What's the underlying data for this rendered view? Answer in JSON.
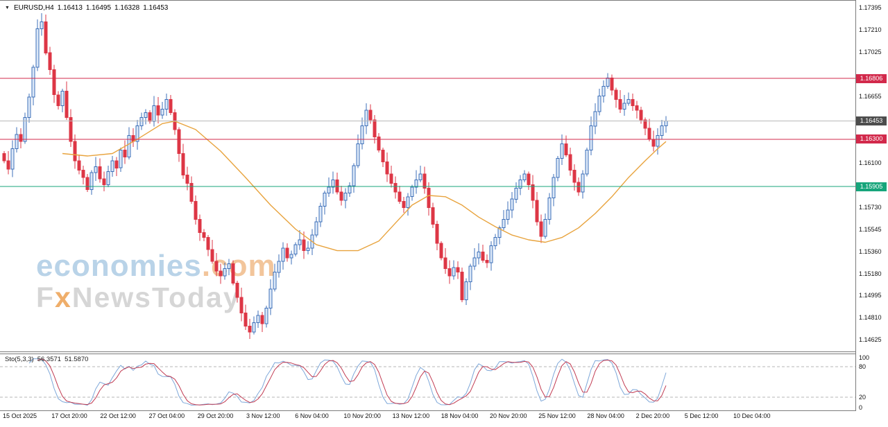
{
  "header": {
    "dropdown_icon": "▼",
    "symbol_period": "EURUSD,H4",
    "open": "1.16413",
    "high": "1.16495",
    "low": "1.16328",
    "close": "1.16453"
  },
  "watermark": {
    "line1_main": "economies",
    "line1_suffix": ".com",
    "line2_prefix": "F",
    "line2_x": "x",
    "line2_rest": "NewsToday"
  },
  "indicator": {
    "name": "Sto(5,3,3)",
    "main_value": "56.3571",
    "signal_value": "51.5870",
    "scale_labels": [
      100,
      80,
      20,
      0
    ]
  },
  "price_axis": {
    "ticks": [
      "1.17395",
      "1.17210",
      "1.17025",
      "1.16655",
      "1.16100",
      "1.15730",
      "1.15545",
      "1.15360",
      "1.15180",
      "1.14995",
      "1.14810",
      "1.14625"
    ]
  },
  "badges": [
    {
      "label": "1.16806",
      "value": 1.16806,
      "bg": "#d2294b",
      "line_color": "#d2294b"
    },
    {
      "label": "1.16453",
      "value": 1.16453,
      "bg": "#4d4d4d",
      "line_color": "#b8b8b8"
    },
    {
      "label": "1.16300",
      "value": 1.163,
      "bg": "#d2294b",
      "line_color": "#d2294b"
    },
    {
      "label": "1.15905",
      "value": 1.15905,
      "bg": "#17a57b",
      "line_color": "#17a57b"
    }
  ],
  "time_axis": {
    "labels": [
      "15 Oct 2025",
      "17 Oct 20:00",
      "22 Oct 12:00",
      "27 Oct 04:00",
      "29 Oct 20:00",
      "3 Nov 12:00",
      "6 Nov 04:00",
      "10 Nov 20:00",
      "13 Nov 12:00",
      "18 Nov 04:00",
      "20 Nov 20:00",
      "25 Nov 12:00",
      "28 Nov 04:00",
      "2 Dec 20:00",
      "5 Dec 12:00",
      "10 Dec 04:00"
    ]
  },
  "colors": {
    "bull_border": "#3d6fb8",
    "bull_fill": "#dce8f8",
    "bear": "#dd3645",
    "ma": "#e8a33d",
    "stoch_main": "#7da7d9",
    "stoch_signal": "#c13b52",
    "level_dash": "#b5b5b5"
  },
  "chart_data": {
    "type": "candlestick",
    "title": "EURUSD,H4",
    "symbol": "EURUSD",
    "timeframe": "H4",
    "ohlc_current": {
      "open": 1.16413,
      "high": 1.16495,
      "low": 1.16328,
      "close": 1.16453
    },
    "ylim": [
      1.14535,
      1.17455
    ],
    "open0": 1.1618,
    "closes": [
      1.1612,
      1.1605,
      1.1622,
      1.1634,
      1.1628,
      1.1648,
      1.1665,
      1.169,
      1.1722,
      1.1728,
      1.1702,
      1.1688,
      1.1667,
      1.1658,
      1.167,
      1.1648,
      1.1628,
      1.1612,
      1.1604,
      1.1598,
      1.1588,
      1.1602,
      1.1607,
      1.1597,
      1.1592,
      1.1603,
      1.1612,
      1.1606,
      1.1621,
      1.1615,
      1.1633,
      1.1628,
      1.1641,
      1.1648,
      1.1652,
      1.1645,
      1.1658,
      1.165,
      1.1655,
      1.1663,
      1.1652,
      1.1638,
      1.1618,
      1.16,
      1.1593,
      1.1578,
      1.1563,
      1.1552,
      1.1548,
      1.1538,
      1.1528,
      1.152,
      1.1516,
      1.1522,
      1.1526,
      1.151,
      1.1498,
      1.1485,
      1.1474,
      1.1469,
      1.1477,
      1.1483,
      1.1476,
      1.1489,
      1.1505,
      1.1519,
      1.1528,
      1.1539,
      1.1531,
      1.1534,
      1.1542,
      1.1546,
      1.1537,
      1.1539,
      1.155,
      1.1561,
      1.1574,
      1.1585,
      1.159,
      1.1596,
      1.1586,
      1.1579,
      1.1585,
      1.1591,
      1.1608,
      1.1626,
      1.1641,
      1.1654,
      1.1646,
      1.1632,
      1.1621,
      1.1611,
      1.1601,
      1.1593,
      1.1586,
      1.1578,
      1.1573,
      1.1582,
      1.159,
      1.1596,
      1.1601,
      1.1589,
      1.1573,
      1.1559,
      1.1543,
      1.1531,
      1.1522,
      1.1516,
      1.1523,
      1.1519,
      1.1496,
      1.1511,
      1.1524,
      1.1531,
      1.1536,
      1.1529,
      1.1527,
      1.1541,
      1.1548,
      1.1556,
      1.1563,
      1.1571,
      1.158,
      1.1589,
      1.1596,
      1.1601,
      1.1592,
      1.1579,
      1.1561,
      1.1549,
      1.1563,
      1.1581,
      1.1598,
      1.1614,
      1.1626,
      1.1617,
      1.1604,
      1.1594,
      1.1586,
      1.1601,
      1.1621,
      1.1641,
      1.1653,
      1.1666,
      1.1674,
      1.1681,
      1.1671,
      1.1663,
      1.1655,
      1.166,
      1.1663,
      1.1658,
      1.1654,
      1.1646,
      1.1639,
      1.163,
      1.1624,
      1.1633,
      1.1641,
      1.16453
    ],
    "ma_anchors": [
      [
        14,
        1.1618
      ],
      [
        20,
        1.1616
      ],
      [
        26,
        1.1618
      ],
      [
        32,
        1.163
      ],
      [
        38,
        1.1643
      ],
      [
        41,
        1.1645
      ],
      [
        46,
        1.1638
      ],
      [
        52,
        1.162
      ],
      [
        58,
        1.1598
      ],
      [
        64,
        1.1575
      ],
      [
        70,
        1.1555
      ],
      [
        75,
        1.1542
      ],
      [
        80,
        1.1537
      ],
      [
        85,
        1.1537
      ],
      [
        90,
        1.1545
      ],
      [
        94,
        1.156
      ],
      [
        98,
        1.1575
      ],
      [
        102,
        1.1583
      ],
      [
        106,
        1.1582
      ],
      [
        110,
        1.1575
      ],
      [
        114,
        1.1565
      ],
      [
        118,
        1.1557
      ],
      [
        122,
        1.155
      ],
      [
        126,
        1.1546
      ],
      [
        130,
        1.1544
      ],
      [
        134,
        1.1548
      ],
      [
        138,
        1.1556
      ],
      [
        142,
        1.1568
      ],
      [
        146,
        1.1582
      ],
      [
        150,
        1.1598
      ],
      [
        154,
        1.1612
      ],
      [
        157,
        1.1622
      ],
      [
        159,
        1.1628
      ]
    ],
    "hlines": [
      1.16806,
      1.163,
      1.15905
    ],
    "current_price": 1.16453,
    "indicator": {
      "type": "stochastic",
      "k": 5,
      "slowing": 3,
      "d": 3,
      "last_main": 56.3571,
      "last_signal": 51.587,
      "levels": [
        80,
        20
      ],
      "range": [
        0,
        100
      ]
    }
  }
}
